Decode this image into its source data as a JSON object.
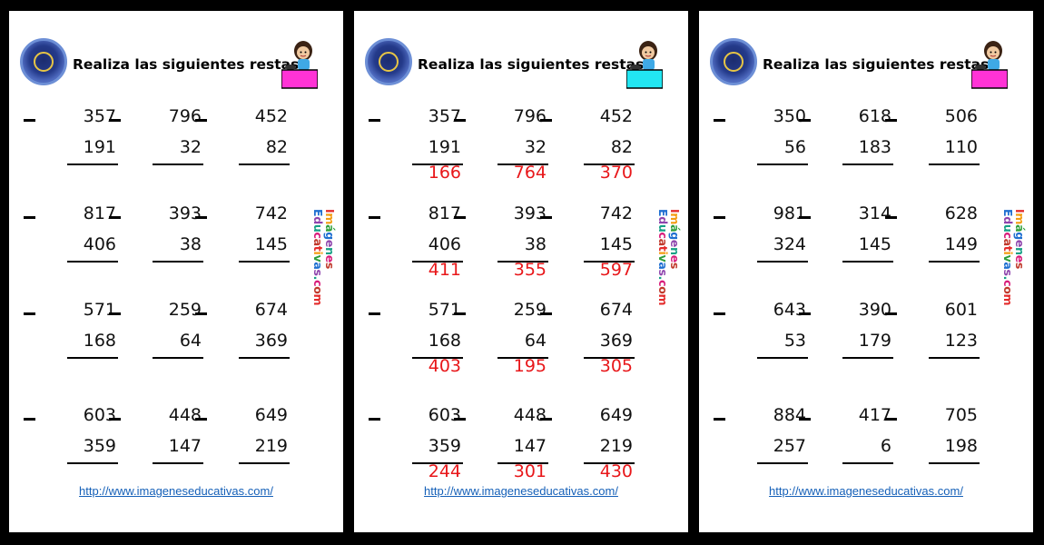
{
  "sheets": [
    {
      "title": "Realiza las siguientes restas",
      "url": "http://www.imageneseducativas.com/",
      "accent": "#ff33d6",
      "show_answers": false,
      "show_side_text": true,
      "problems": [
        {
          "top": "357",
          "bottom": "191",
          "answer": ""
        },
        {
          "top": "796",
          "bottom": "32",
          "answer": ""
        },
        {
          "top": "452",
          "bottom": "82",
          "answer": ""
        },
        {
          "top": "817",
          "bottom": "406",
          "answer": ""
        },
        {
          "top": "393",
          "bottom": "38",
          "answer": ""
        },
        {
          "top": "742",
          "bottom": "145",
          "answer": ""
        },
        {
          "top": "571",
          "bottom": "168",
          "answer": ""
        },
        {
          "top": "259",
          "bottom": "64",
          "answer": ""
        },
        {
          "top": "674",
          "bottom": "369",
          "answer": ""
        },
        {
          "top": "603",
          "bottom": "359",
          "answer": ""
        },
        {
          "top": "448",
          "bottom": "147",
          "answer": ""
        },
        {
          "top": "649",
          "bottom": "219",
          "answer": ""
        }
      ]
    },
    {
      "title": "Realiza las siguientes restas",
      "url": "http://www.imageneseducativas.com/",
      "accent": "#22e6f2",
      "show_answers": true,
      "show_side_text": true,
      "problems": [
        {
          "top": "357",
          "bottom": "191",
          "answer": "166"
        },
        {
          "top": "796",
          "bottom": "32",
          "answer": "764"
        },
        {
          "top": "452",
          "bottom": "82",
          "answer": "370"
        },
        {
          "top": "817",
          "bottom": "406",
          "answer": "411"
        },
        {
          "top": "393",
          "bottom": "38",
          "answer": "355"
        },
        {
          "top": "742",
          "bottom": "145",
          "answer": "597"
        },
        {
          "top": "571",
          "bottom": "168",
          "answer": "403"
        },
        {
          "top": "259",
          "bottom": "64",
          "answer": "195"
        },
        {
          "top": "674",
          "bottom": "369",
          "answer": "305"
        },
        {
          "top": "603",
          "bottom": "359",
          "answer": "244"
        },
        {
          "top": "448",
          "bottom": "147",
          "answer": "301"
        },
        {
          "top": "649",
          "bottom": "219",
          "answer": "430"
        }
      ]
    },
    {
      "title": "Realiza las siguientes restas",
      "url": "http://www.imageneseducativas.com/",
      "accent": "#ff33d6",
      "show_answers": false,
      "show_side_text": true,
      "problems": [
        {
          "top": "350",
          "bottom": "56",
          "answer": ""
        },
        {
          "top": "618",
          "bottom": "183",
          "answer": ""
        },
        {
          "top": "506",
          "bottom": "110",
          "answer": ""
        },
        {
          "top": "981",
          "bottom": "324",
          "answer": ""
        },
        {
          "top": "314",
          "bottom": "145",
          "answer": ""
        },
        {
          "top": "628",
          "bottom": "149",
          "answer": ""
        },
        {
          "top": "643",
          "bottom": "53",
          "answer": ""
        },
        {
          "top": "390",
          "bottom": "179",
          "answer": ""
        },
        {
          "top": "601",
          "bottom": "123",
          "answer": ""
        },
        {
          "top": "884",
          "bottom": "257",
          "answer": ""
        },
        {
          "top": "417",
          "bottom": "6",
          "answer": ""
        },
        {
          "top": "705",
          "bottom": "198",
          "answer": ""
        }
      ]
    }
  ],
  "side_text": {
    "line1": "Imágenes",
    "line2": "Educativas.com",
    "colors": [
      "#e32b2b",
      "#f39c12",
      "#2e9e3a",
      "#1f6fd1",
      "#8e44ad",
      "#16a085",
      "#d81b7a",
      "#c0392b"
    ]
  },
  "colors": {
    "answer": "#e8171a",
    "link": "#1560b8"
  }
}
